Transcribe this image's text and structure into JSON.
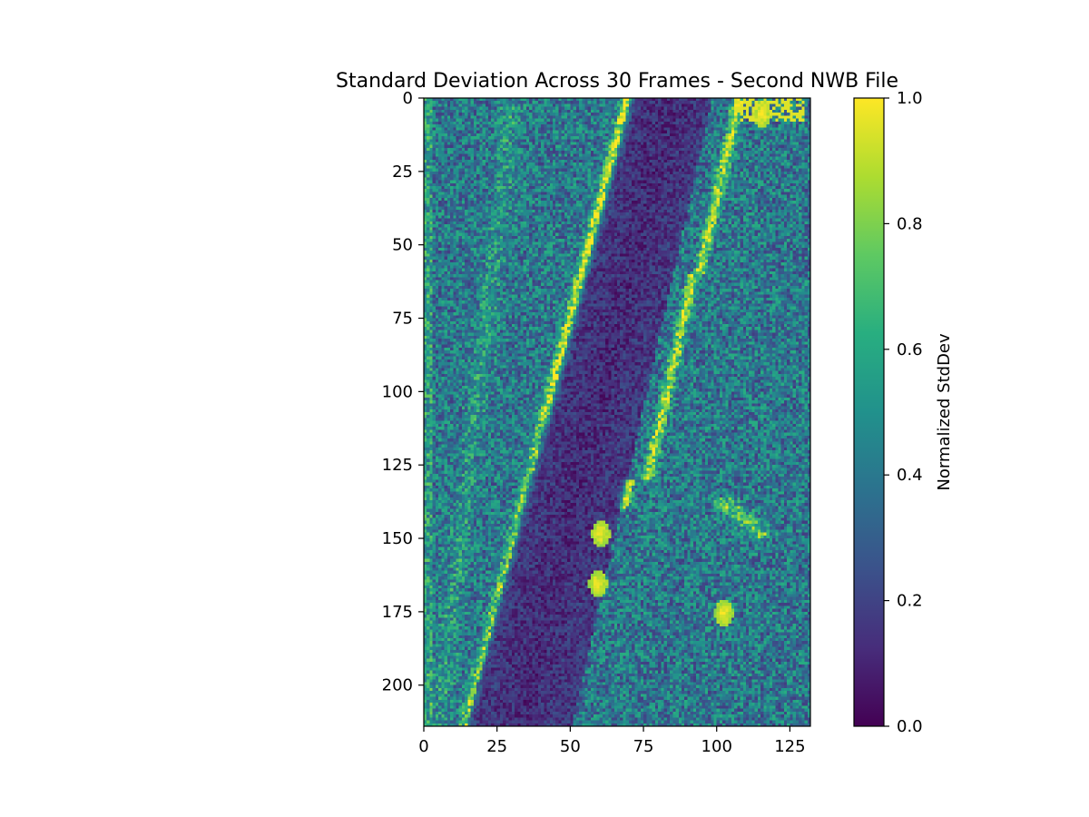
{
  "chart_data": {
    "type": "heatmap",
    "title": "Standard Deviation Across 30 Frames - Second NWB File",
    "xlabel": "",
    "ylabel": "",
    "image_shape": {
      "rows": 214,
      "cols": 132
    },
    "xlim": [
      0,
      131
    ],
    "ylim": [
      213,
      0
    ],
    "x_ticks": [
      0,
      25,
      50,
      75,
      100,
      125
    ],
    "y_ticks": [
      0,
      25,
      50,
      75,
      100,
      125,
      150,
      175,
      200
    ],
    "colormap": "viridis",
    "colorbar": {
      "label": "Normalized StdDev",
      "range": [
        0.0,
        1.0
      ],
      "ticks": [
        "0.0",
        "0.2",
        "0.4",
        "0.6",
        "0.8",
        "1.0"
      ]
    },
    "grid": false,
    "features": {
      "background_level": 0.4,
      "dark_band_level": 0.12,
      "bright_edge_level": 0.95,
      "bright_spots": [
        {
          "x": 60,
          "y": 148,
          "value": 1.0
        },
        {
          "x": 59,
          "y": 165,
          "value": 1.0
        },
        {
          "x": 102,
          "y": 175,
          "value": 1.0
        },
        {
          "x": 115,
          "y": 5,
          "value": 1.0
        }
      ]
    }
  }
}
